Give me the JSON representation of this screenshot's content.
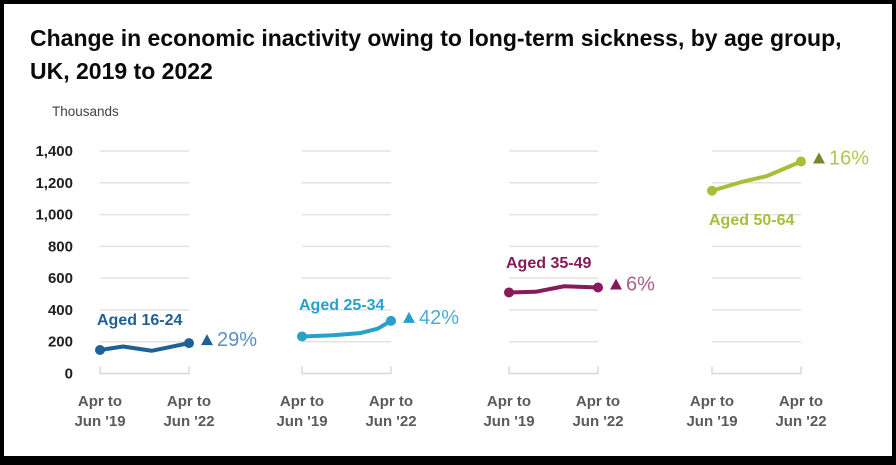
{
  "page": {
    "background": "#ffffff",
    "frame_border_color": "#000000"
  },
  "chart_data": {
    "type": "line",
    "title": "Change in economic inactivity owing to long-term sickness, by age group, UK, 2019 to 2022",
    "unit_label": "Thousands",
    "ylim": [
      0,
      1400
    ],
    "ytick_interval": 200,
    "ytick_values": [
      1400,
      1200,
      1000,
      800,
      600,
      400,
      200,
      0
    ],
    "ytick_labels": [
      "1,400",
      "1,200",
      "1,000",
      "800",
      "600",
      "400",
      "200",
      "0"
    ],
    "grid": "short horizontal gridline segments per panel, baseline bracket at zero",
    "legend_position": "direct series labels on chart",
    "x_tick_labels": [
      [
        "Apr to",
        "Jun '19"
      ],
      [
        "Apr to",
        "Jun '22"
      ]
    ],
    "axis_colors": {
      "ytick_color": "#202020",
      "xtick_color": "#5a5a5c",
      "grid_color": "#e2e2e2",
      "bracket_color": "#d8d8d8"
    },
    "series": [
      {
        "name": "Aged 16-24",
        "color": "#206095",
        "label_placement": "above-line",
        "direction": "increase",
        "change_symbol": "▲",
        "change_pct": "29%",
        "triangle_color": "#206095",
        "pct_text_color": "#5b8fc0",
        "start_value": 148,
        "end_value": 191,
        "points": [
          [
            0,
            148
          ],
          [
            0.26,
            170
          ],
          [
            0.58,
            143
          ],
          [
            1,
            191
          ]
        ]
      },
      {
        "name": "Aged 25-34",
        "color": "#27a0cc",
        "label_placement": "above-line",
        "direction": "increase",
        "change_symbol": "▲",
        "change_pct": "42%",
        "triangle_color": "#27a0cc",
        "pct_text_color": "#49add3",
        "start_value": 233,
        "end_value": 331,
        "points": [
          [
            0,
            233
          ],
          [
            0.35,
            241
          ],
          [
            0.65,
            254
          ],
          [
            0.85,
            282
          ],
          [
            1,
            331
          ]
        ]
      },
      {
        "name": "Aged 35-49",
        "color": "#871a5b",
        "label_placement": "above-line",
        "direction": "increase",
        "change_symbol": "▲",
        "change_pct": "6%",
        "triangle_color": "#871a5b",
        "pct_text_color": "#a9618c",
        "start_value": 510,
        "end_value": 541,
        "points": [
          [
            0,
            510
          ],
          [
            0.3,
            514
          ],
          [
            0.62,
            549
          ],
          [
            1,
            541
          ]
        ]
      },
      {
        "name": "Aged 50-64",
        "color": "#a8bd3a",
        "label_placement": "below-line",
        "direction": "increase",
        "change_symbol": "▲",
        "change_pct": "16%",
        "triangle_color": "#76882a",
        "pct_text_color": "#b3c452",
        "start_value": 1150,
        "end_value": 1334,
        "points": [
          [
            0,
            1150
          ],
          [
            0.35,
            1208
          ],
          [
            0.62,
            1243
          ],
          [
            1,
            1334
          ]
        ]
      }
    ]
  }
}
